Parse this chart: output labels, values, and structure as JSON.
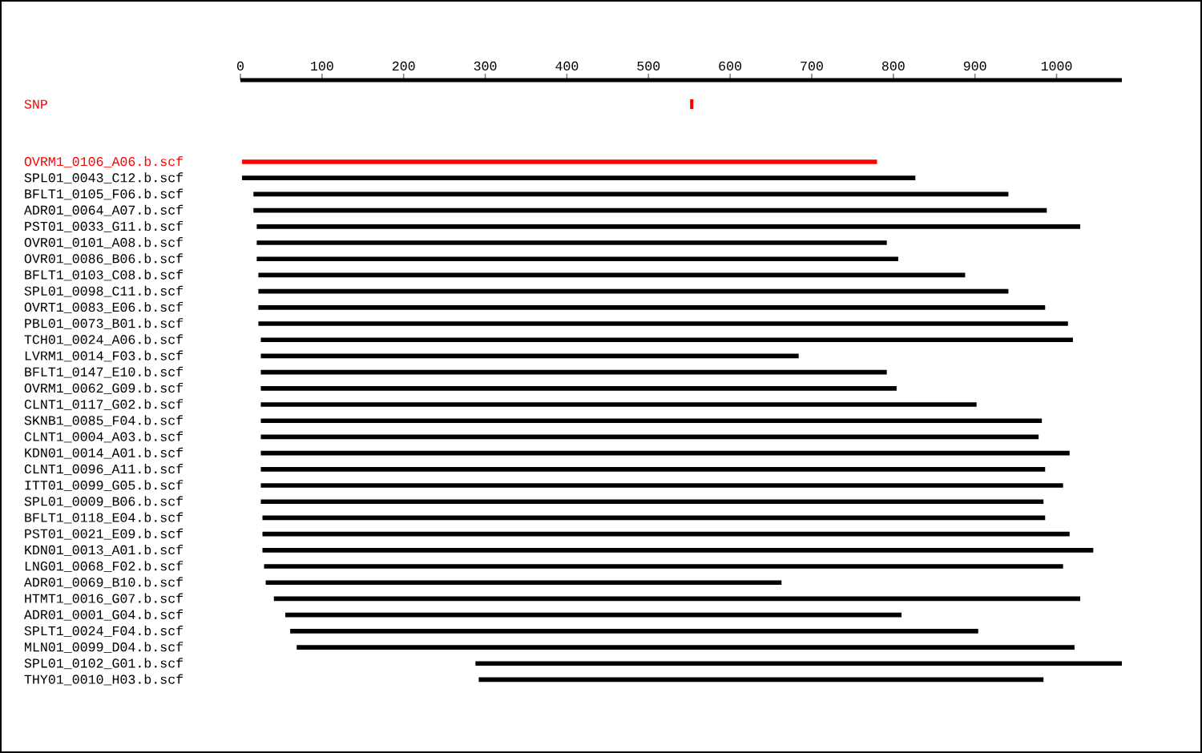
{
  "chart_data": {
    "type": "bar",
    "orientation": "horizontal",
    "categories": [
      "SNP",
      "OVRM1_0106_A06.b.scf",
      "SPL01_0043_C12.b.scf",
      "BFLT1_0105_F06.b.scf",
      "ADR01_0064_A07.b.scf",
      "PST01_0033_G11.b.scf",
      "OVR01_0101_A08.b.scf",
      "OVR01_0086_B06.b.scf",
      "BFLT1_0103_C08.b.scf",
      "SPL01_0098_C11.b.scf",
      "OVRT1_0083_E06.b.scf",
      "PBL01_0073_B01.b.scf",
      "TCH01_0024_A06.b.scf",
      "LVRM1_0014_F03.b.scf",
      "BFLT1_0147_E10.b.scf",
      "OVRM1_0062_G09.b.scf",
      "CLNT1_0117_G02.b.scf",
      "SKNB1_0085_F04.b.scf",
      "CLNT1_0004_A03.b.scf",
      "KDN01_0014_A01.b.scf",
      "CLNT1_0096_A11.b.scf",
      "ITT01_0099_G05.b.scf",
      "SPL01_0009_B06.b.scf",
      "BFLT1_0118_E04.b.scf",
      "PST01_0021_E09.b.scf",
      "KDN01_0013_A01.b.scf",
      "LNG01_0068_F02.b.scf",
      "ADR01_0069_B10.b.scf",
      "HTMT1_0016_G07.b.scf",
      "ADR01_0001_G04.b.scf",
      "SPLT1_0024_F04.b.scf",
      "MLN01_0099_D04.b.scf",
      "SPL01_0102_G01.b.scf",
      "THY01_0010_H03.b.scf"
    ],
    "base": [
      551,
      2,
      2,
      16,
      16,
      20,
      20,
      20,
      22,
      22,
      22,
      22,
      25,
      25,
      25,
      25,
      25,
      25,
      25,
      25,
      25,
      25,
      25,
      27,
      27,
      27,
      29,
      31,
      41,
      55,
      61,
      69,
      288,
      292
    ],
    "values": [
      4,
      778,
      825,
      925,
      972,
      1009,
      772,
      786,
      866,
      919,
      964,
      992,
      995,
      659,
      767,
      779,
      877,
      957,
      953,
      991,
      961,
      983,
      959,
      959,
      989,
      1018,
      979,
      632,
      988,
      755,
      843,
      953,
      792,
      692
    ],
    "colors": [
      "#ff0000",
      "#ff0000",
      "#000000",
      "#000000",
      "#000000",
      "#000000",
      "#000000",
      "#000000",
      "#000000",
      "#000000",
      "#000000",
      "#000000",
      "#000000",
      "#000000",
      "#000000",
      "#000000",
      "#000000",
      "#000000",
      "#000000",
      "#000000",
      "#000000",
      "#000000",
      "#000000",
      "#000000",
      "#000000",
      "#000000",
      "#000000",
      "#000000",
      "#000000",
      "#000000",
      "#000000",
      "#000000",
      "#000000",
      "#000000"
    ],
    "xlim": [
      0,
      1080
    ],
    "xticks": [
      0,
      100,
      200,
      300,
      400,
      500,
      600,
      700,
      800,
      900,
      1000
    ]
  }
}
